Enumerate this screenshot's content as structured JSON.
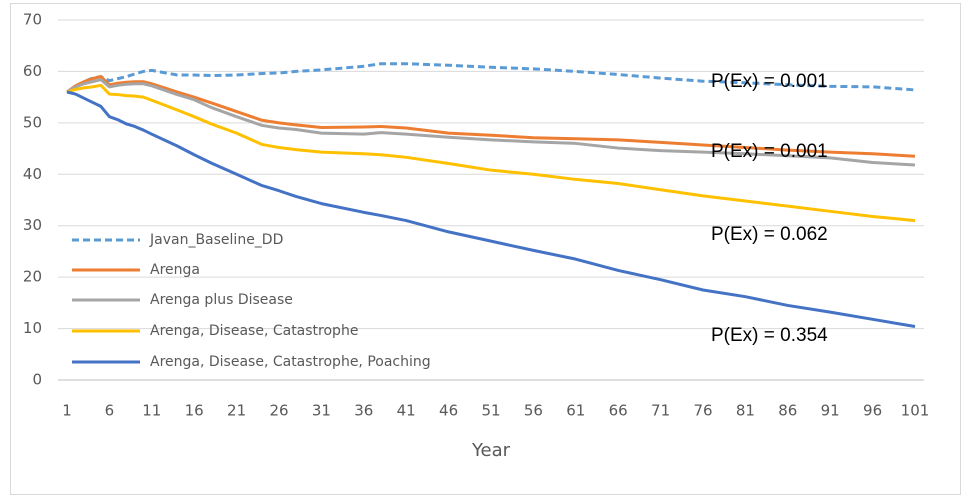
{
  "chart_data": {
    "type": "line",
    "x_label": "Year",
    "x": [
      1,
      2,
      3,
      4,
      5,
      6,
      7,
      8,
      9,
      10,
      11,
      14,
      16,
      18,
      21,
      24,
      26,
      28,
      31,
      36,
      38,
      41,
      46,
      51,
      56,
      61,
      66,
      71,
      76,
      81,
      86,
      91,
      96,
      101
    ],
    "xlim": [
      1,
      101
    ],
    "xticks": [
      1,
      6,
      11,
      16,
      21,
      26,
      31,
      36,
      41,
      46,
      51,
      56,
      61,
      66,
      71,
      76,
      81,
      86,
      91,
      96,
      101
    ],
    "ylim": [
      0,
      70
    ],
    "yticks": [
      0,
      10,
      20,
      30,
      40,
      50,
      60,
      70
    ],
    "grid": true,
    "legend": "lower left",
    "series": [
      {
        "name": "Javan_Baseline_DD",
        "color": "#5b9bd5",
        "dashed": true,
        "values": [
          56,
          57,
          58,
          58.7,
          59,
          58.2,
          58.6,
          59,
          59.5,
          60,
          60.2,
          59.3,
          59.3,
          59.2,
          59.3,
          59.6,
          59.7,
          60,
          60.3,
          61,
          61.5,
          61.5,
          61.2,
          60.8,
          60.5,
          60,
          59.4,
          58.7,
          58.1,
          57.8,
          57.4,
          57.1,
          57,
          56.4
        ]
      },
      {
        "name": "Arenga",
        "color": "#ed7d31",
        "dashed": false,
        "values": [
          56,
          57.2,
          58,
          58.6,
          59,
          57.4,
          57.7,
          57.9,
          58,
          58,
          57.6,
          56,
          55,
          53.9,
          52.2,
          50.5,
          50,
          49.6,
          49.1,
          49.2,
          49.3,
          49,
          48,
          47.6,
          47.1,
          46.9,
          46.7,
          46.2,
          45.7,
          45.2,
          44.7,
          44.3,
          44,
          43.5
        ]
      },
      {
        "name": "Arenga plus Disease",
        "color": "#a5a5a5",
        "dashed": false,
        "values": [
          56,
          57,
          57.6,
          58,
          58.4,
          57,
          57.3,
          57.5,
          57.6,
          57.6,
          57.2,
          55.5,
          54.5,
          53,
          51.2,
          49.5,
          49,
          48.7,
          48,
          47.8,
          48.1,
          47.8,
          47.2,
          46.7,
          46.3,
          46,
          45.1,
          44.6,
          44.3,
          44,
          43.6,
          43.2,
          42.3,
          41.8
        ]
      },
      {
        "name": "Arenga, Disease, Catastrophe",
        "color": "#ffc000",
        "dashed": false,
        "values": [
          56,
          56.5,
          56.8,
          57,
          57.3,
          55.6,
          55.5,
          55.3,
          55.2,
          55,
          54.4,
          52.5,
          51.2,
          49.8,
          48,
          45.8,
          45.2,
          44.8,
          44.3,
          44,
          43.8,
          43.3,
          42.1,
          40.8,
          40,
          39,
          38.2,
          37,
          35.8,
          34.8,
          33.8,
          32.8,
          31.8,
          31
        ]
      },
      {
        "name": "Arenga, Disease, Catastrophe, Poaching",
        "color": "#4472c4",
        "dashed": false,
        "values": [
          56,
          55.6,
          54.8,
          54,
          53.2,
          51.2,
          50.6,
          49.8,
          49.3,
          48.6,
          47.8,
          45.5,
          43.8,
          42.2,
          40,
          37.8,
          36.8,
          35.7,
          34.3,
          32.6,
          32,
          31,
          28.8,
          27,
          25.2,
          23.5,
          21.3,
          19.5,
          17.5,
          16.2,
          14.5,
          13.2,
          11.8,
          10.4
        ]
      }
    ],
    "annotations": [
      "P(Ex) = 0.001",
      "P(Ex) = 0.001",
      "P(Ex) = 0.062",
      "P(Ex) = 0.354"
    ]
  }
}
